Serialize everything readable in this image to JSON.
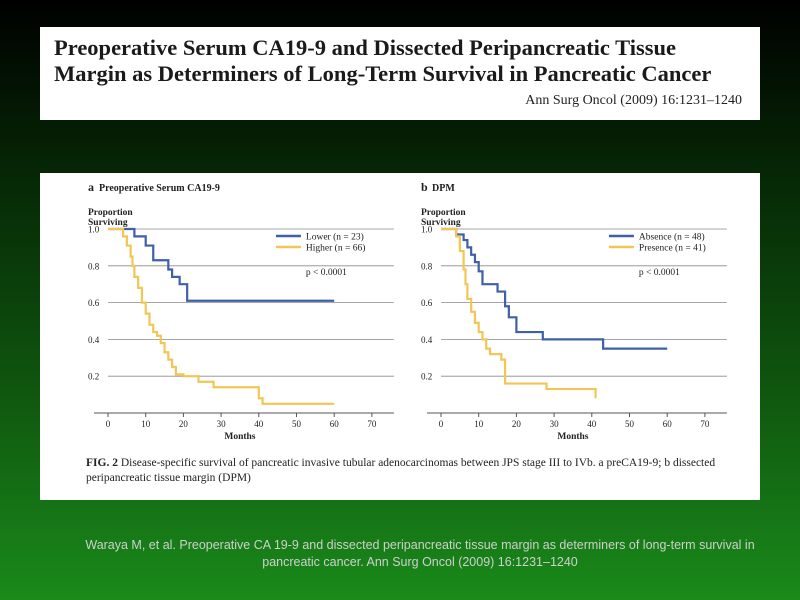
{
  "header": {
    "title": "Preoperative Serum CA19-9 and Dissected Peripancreatic Tissue Margin as Determiners of Long-Term Survival in Pancreatic Cancer",
    "citation": "Ann Surg Oncol (2009) 16:1231–1240"
  },
  "figure": {
    "caption_label": "FIG. 2",
    "caption_text": " Disease-specific survival of pancreatic invasive tubular adenocarcinomas between JPS stage III to IVb. a preCA19-9; b dissected peripancreatic tissue margin (DPM)"
  },
  "footer": {
    "citation": "Waraya M, et al. Preoperative CA 19-9 and dissected peripancreatic tissue margin as determiners of long-term survival in pancreatic cancer. Ann Surg Oncol (2009) 16:1231–1240"
  },
  "colors": {
    "blue": "#3f5fa8",
    "yellow": "#f2c655",
    "axis": "#555555",
    "grid": "#8a8a8a"
  },
  "chart_data": [
    {
      "type": "line",
      "panel_label": "a",
      "title": "Preoperative Serum CA19-9",
      "ylabel_line1": "Proportion",
      "ylabel_line2": "Surviving",
      "xlabel": "Months",
      "xlim": [
        0,
        70
      ],
      "ylim": [
        0,
        1.0
      ],
      "x_ticks": [
        0,
        10,
        20,
        30,
        40,
        50,
        60,
        70
      ],
      "y_ticks": [
        "1.0",
        "0.8",
        "0.6",
        "0.4",
        "0.2"
      ],
      "annotation": "p < 0.0001",
      "legend_position": "top-right",
      "series": [
        {
          "name": "Lower (n = 23)",
          "color": "#3f5fa8",
          "steps": [
            [
              0,
              1.0
            ],
            [
              7,
              0.96
            ],
            [
              10,
              0.91
            ],
            [
              12,
              0.83
            ],
            [
              16,
              0.78
            ],
            [
              17,
              0.74
            ],
            [
              19,
              0.7
            ],
            [
              21,
              0.61
            ],
            [
              60,
              0.61
            ]
          ]
        },
        {
          "name": "Higher (n = 66)",
          "color": "#f2c655",
          "steps": [
            [
              0,
              1.0
            ],
            [
              4,
              0.96
            ],
            [
              5,
              0.91
            ],
            [
              6,
              0.85
            ],
            [
              6.5,
              0.8
            ],
            [
              7,
              0.74
            ],
            [
              8,
              0.68
            ],
            [
              9,
              0.6
            ],
            [
              10,
              0.54
            ],
            [
              11,
              0.48
            ],
            [
              12,
              0.44
            ],
            [
              13,
              0.42
            ],
            [
              14,
              0.38
            ],
            [
              15,
              0.33
            ],
            [
              16,
              0.29
            ],
            [
              17,
              0.25
            ],
            [
              18,
              0.21
            ],
            [
              20,
              0.2
            ],
            [
              24,
              0.17
            ],
            [
              28,
              0.14
            ],
            [
              40,
              0.08
            ],
            [
              41,
              0.05
            ],
            [
              60,
              0.05
            ]
          ]
        }
      ]
    },
    {
      "type": "line",
      "panel_label": "b",
      "title": "DPM",
      "ylabel_line1": "Proportion",
      "ylabel_line2": "Surviving",
      "xlabel": "Months",
      "xlim": [
        0,
        70
      ],
      "ylim": [
        0,
        1.0
      ],
      "x_ticks": [
        0,
        10,
        20,
        30,
        40,
        50,
        60,
        70
      ],
      "y_ticks": [
        "1.0",
        "0.8",
        "0.6",
        "0.4",
        "0.2"
      ],
      "annotation": "p < 0.0001",
      "legend_position": "top-right",
      "series": [
        {
          "name": "Absence (n = 48)",
          "color": "#3f5fa8",
          "steps": [
            [
              0,
              1.0
            ],
            [
              4,
              0.97
            ],
            [
              6,
              0.94
            ],
            [
              7,
              0.9
            ],
            [
              8,
              0.86
            ],
            [
              9,
              0.82
            ],
            [
              10,
              0.77
            ],
            [
              11,
              0.7
            ],
            [
              15,
              0.66
            ],
            [
              17,
              0.58
            ],
            [
              18,
              0.52
            ],
            [
              20,
              0.44
            ],
            [
              27,
              0.4
            ],
            [
              43,
              0.35
            ],
            [
              60,
              0.35
            ]
          ]
        },
        {
          "name": "Presence (n = 41)",
          "color": "#f2c655",
          "steps": [
            [
              0,
              1.0
            ],
            [
              4,
              0.96
            ],
            [
              5,
              0.88
            ],
            [
              6,
              0.78
            ],
            [
              6.5,
              0.7
            ],
            [
              7,
              0.62
            ],
            [
              8,
              0.55
            ],
            [
              9,
              0.49
            ],
            [
              10,
              0.44
            ],
            [
              11,
              0.4
            ],
            [
              12,
              0.35
            ],
            [
              13,
              0.32
            ],
            [
              16,
              0.29
            ],
            [
              17,
              0.16
            ],
            [
              28,
              0.13
            ],
            [
              41,
              0.08
            ]
          ]
        }
      ]
    }
  ]
}
